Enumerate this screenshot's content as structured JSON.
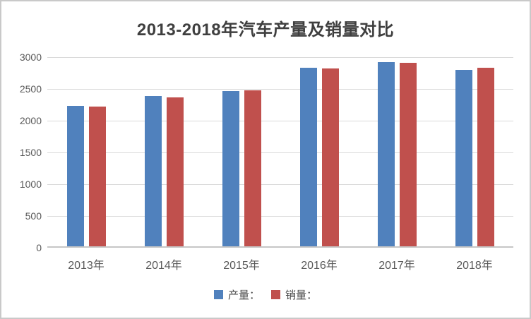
{
  "chart_data": {
    "type": "bar",
    "title": "2013-2018年汽车产量及销量对比",
    "categories": [
      "2013年",
      "2014年",
      "2015年",
      "2016年",
      "2017年",
      "2018年"
    ],
    "series": [
      {
        "name": "产量：",
        "color": "#5081BD",
        "values": [
          2212,
          2372,
          2450,
          2812,
          2902,
          2781
        ]
      },
      {
        "name": "销量：",
        "color": "#C0504D",
        "values": [
          2198,
          2349,
          2460,
          2803,
          2888,
          2808
        ]
      }
    ],
    "xlabel": "",
    "ylabel": "",
    "ylim": [
      0,
      3000
    ],
    "yticks": [
      0,
      500,
      1000,
      1500,
      2000,
      2500,
      3000
    ],
    "grid": true,
    "legend_position": "bottom",
    "colors": {
      "gridline": "#d9d9d9",
      "axis_line": "#c6c6c6",
      "tick_text": "#595959",
      "title_text": "#3f3f3f",
      "background": "#ffffff",
      "frame_border": "#c9c9c9"
    }
  }
}
